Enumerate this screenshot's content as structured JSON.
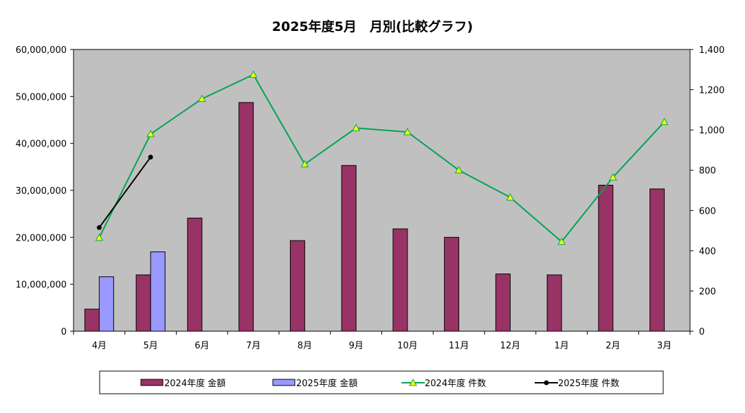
{
  "chart_data": {
    "type": "bar",
    "title": "2025年度5月　月別(比較グラフ)",
    "categories": [
      "4月",
      "5月",
      "6月",
      "7月",
      "8月",
      "9月",
      "10月",
      "11月",
      "12月",
      "1月",
      "2月",
      "3月"
    ],
    "left_axis": {
      "ylim": [
        0,
        60000000
      ],
      "ticks": [
        0,
        10000000,
        20000000,
        30000000,
        40000000,
        50000000,
        60000000
      ],
      "tick_labels": [
        "0",
        "10,000,000",
        "20,000,000",
        "30,000,000",
        "40,000,000",
        "50,000,000",
        "60,000,000"
      ]
    },
    "right_axis": {
      "ylim": [
        0,
        1400
      ],
      "ticks": [
        0,
        200,
        400,
        600,
        800,
        1000,
        1200,
        1400
      ],
      "tick_labels": [
        "0",
        "200",
        "400",
        "600",
        "800",
        "1,000",
        "1,200",
        "1,400"
      ]
    },
    "series": [
      {
        "name": "2024年度 金額",
        "kind": "bar",
        "axis": "left",
        "color": "#993366",
        "values": [
          4700000,
          12000000,
          24100000,
          48700000,
          19300000,
          35300000,
          21800000,
          20000000,
          12200000,
          12000000,
          31100000,
          30300000
        ]
      },
      {
        "name": "2025年度 金額",
        "kind": "bar",
        "axis": "left",
        "color": "#9999ff",
        "values": [
          11600000,
          16900000,
          null,
          null,
          null,
          null,
          null,
          null,
          null,
          null,
          null,
          null
        ]
      },
      {
        "name": "2024年度 件数",
        "kind": "line",
        "axis": "right",
        "color": "#00a550",
        "marker": "triangle",
        "marker_color": "#ffff00",
        "values": [
          465,
          980,
          1155,
          1275,
          830,
          1010,
          990,
          800,
          665,
          445,
          765,
          1040
        ]
      },
      {
        "name": "2025年度 件数",
        "kind": "line",
        "axis": "right",
        "color": "#000000",
        "marker": "circle",
        "values": [
          515,
          865,
          null,
          null,
          null,
          null,
          null,
          null,
          null,
          null,
          null,
          null
        ]
      }
    ],
    "plot_background": "#c0c0c0",
    "grid": false,
    "legend_position": "bottom"
  }
}
